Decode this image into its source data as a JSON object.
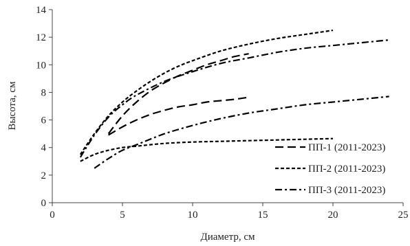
{
  "chart_data": {
    "type": "line",
    "title": "",
    "xlabel": "Диаметр, см",
    "ylabel": "Высота, см",
    "xlim": [
      0,
      25
    ],
    "ylim": [
      0,
      14
    ],
    "xticks": [
      0,
      5,
      10,
      15,
      20,
      25
    ],
    "yticks": [
      0,
      2,
      4,
      6,
      8,
      10,
      12,
      14
    ],
    "grid": false,
    "legend_position": "bottom-right",
    "line_color": "#000000",
    "series": [
      {
        "name": "ПП-1 (2011-2023)",
        "style": "long-dash",
        "curves": [
          {
            "x": [
              4,
              5,
              6,
              7,
              8,
              9,
              10,
              11,
              12,
              13,
              14
            ],
            "y": [
              5.0,
              6.3,
              7.3,
              8.1,
              8.7,
              9.2,
              9.6,
              10.0,
              10.3,
              10.6,
              10.8
            ]
          },
          {
            "x": [
              4,
              5,
              6,
              7,
              8,
              9,
              10,
              11,
              12,
              13,
              14
            ],
            "y": [
              4.9,
              5.5,
              6.0,
              6.4,
              6.7,
              6.95,
              7.1,
              7.3,
              7.4,
              7.5,
              7.65
            ]
          }
        ]
      },
      {
        "name": "ПП-2 (2011-2023)",
        "style": "short-dash",
        "curves": [
          {
            "x": [
              2,
              3,
              4,
              5,
              6,
              7,
              8,
              9,
              10,
              12,
              14,
              16,
              18,
              20
            ],
            "y": [
              3.5,
              5.0,
              6.3,
              7.3,
              8.1,
              8.8,
              9.4,
              9.9,
              10.3,
              11.0,
              11.5,
              11.9,
              12.2,
              12.5
            ]
          },
          {
            "x": [
              2,
              3,
              4,
              5,
              6,
              8,
              10,
              12,
              14,
              16,
              18,
              20
            ],
            "y": [
              3.0,
              3.5,
              3.8,
              4.0,
              4.1,
              4.3,
              4.4,
              4.45,
              4.5,
              4.55,
              4.6,
              4.65
            ]
          }
        ]
      },
      {
        "name": "ПП-3 (2011-2023)",
        "style": "dash-dot",
        "curves": [
          {
            "x": [
              2,
              3,
              4,
              5,
              6,
              8,
              10,
              12,
              14,
              16,
              18,
              20,
              22,
              24
            ],
            "y": [
              3.3,
              4.9,
              6.2,
              7.1,
              7.8,
              8.8,
              9.5,
              10.1,
              10.5,
              10.9,
              11.2,
              11.4,
              11.6,
              11.8
            ]
          },
          {
            "x": [
              3,
              4,
              5,
              6,
              8,
              10,
              12,
              14,
              16,
              18,
              20,
              22,
              24
            ],
            "y": [
              2.5,
              3.2,
              3.8,
              4.2,
              5.0,
              5.6,
              6.1,
              6.5,
              6.8,
              7.1,
              7.3,
              7.5,
              7.7
            ]
          }
        ]
      }
    ]
  }
}
